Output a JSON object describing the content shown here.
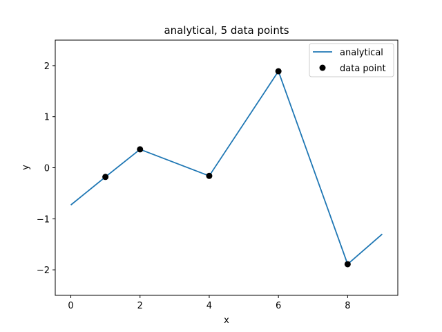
{
  "chart_data": {
    "type": "line",
    "title": "analytical, 5 data points",
    "xlabel": "x",
    "ylabel": "y",
    "xlim": [
      -0.45,
      9.45
    ],
    "ylim": [
      -2.5,
      2.5
    ],
    "xticks": [
      0,
      2,
      4,
      6,
      8
    ],
    "xtick_labels": [
      "0",
      "2",
      "4",
      "6",
      "8"
    ],
    "yticks": [
      -2,
      -1,
      0,
      1,
      2
    ],
    "ytick_labels": [
      "−2",
      "−1",
      "0",
      "1",
      "2"
    ],
    "grid": false,
    "legend_position": "top-right",
    "series": [
      {
        "name": "analytical",
        "kind": "line",
        "color": "#1f77b4",
        "x": [
          0,
          1,
          2,
          4,
          6,
          8,
          9
        ],
        "y": [
          -0.73,
          -0.18,
          0.36,
          -0.16,
          1.89,
          -1.89,
          -1.3
        ]
      },
      {
        "name": "data point",
        "kind": "scatter",
        "color": "#000000",
        "x": [
          1,
          2,
          4,
          6,
          8
        ],
        "y": [
          -0.18,
          0.36,
          -0.16,
          1.89,
          -1.89
        ]
      }
    ]
  }
}
